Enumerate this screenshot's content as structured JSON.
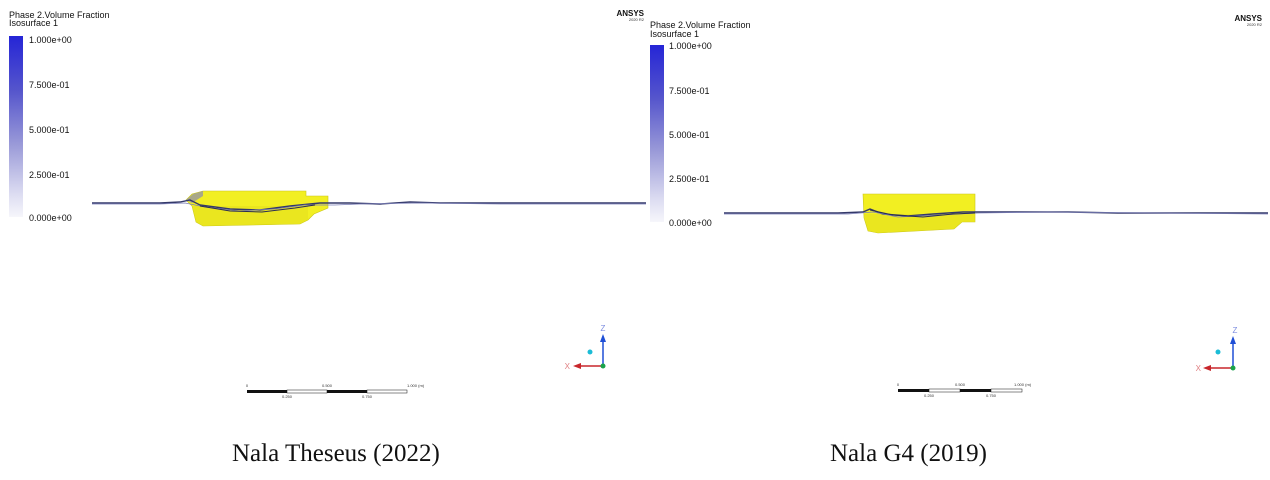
{
  "panels": [
    {
      "legend": {
        "title": "Phase 2.Volume Fraction",
        "subtitle": "Isosurface 1",
        "ticks": [
          "1.000e+00",
          "7.500e-01",
          "5.000e-01",
          "2.500e-01",
          "0.000e+00"
        ]
      },
      "brand": {
        "name": "ANSYS",
        "version": "2020 R2"
      },
      "scale_bar": {
        "top_labels": [
          "0",
          "0.500",
          "1.000  (m)"
        ],
        "bottom_labels": [
          "0.250",
          "0.750"
        ]
      },
      "triad": {
        "z": "Z",
        "x": "X"
      },
      "caption": "Nala Theseus (2022)"
    },
    {
      "legend": {
        "title": "Phase 2.Volume Fraction",
        "subtitle": "Isosurface 1",
        "ticks": [
          "1.000e+00",
          "7.500e-01",
          "5.000e-01",
          "2.500e-01",
          "0.000e+00"
        ]
      },
      "brand": {
        "name": "ANSYS",
        "version": "2020 R2"
      },
      "scale_bar": {
        "top_labels": [
          "0",
          "0.500",
          "1.000  (m)"
        ],
        "bottom_labels": [
          "0.250",
          "0.750"
        ]
      },
      "triad": {
        "z": "Z",
        "x": "X"
      },
      "caption": "Nala G4 (2019)"
    }
  ],
  "colors": {
    "hull": "#f2ef22",
    "hull_shade": "#d7d31a",
    "water_line": "#3a3f6e",
    "colorbar_top": "#2525d6",
    "colorbar_bottom": "#f6f6fb",
    "axis_z": "#1f4fd6",
    "axis_x": "#c8262b",
    "axis_y": "#1aa34a",
    "triad_ball": "#1bbcd6"
  }
}
